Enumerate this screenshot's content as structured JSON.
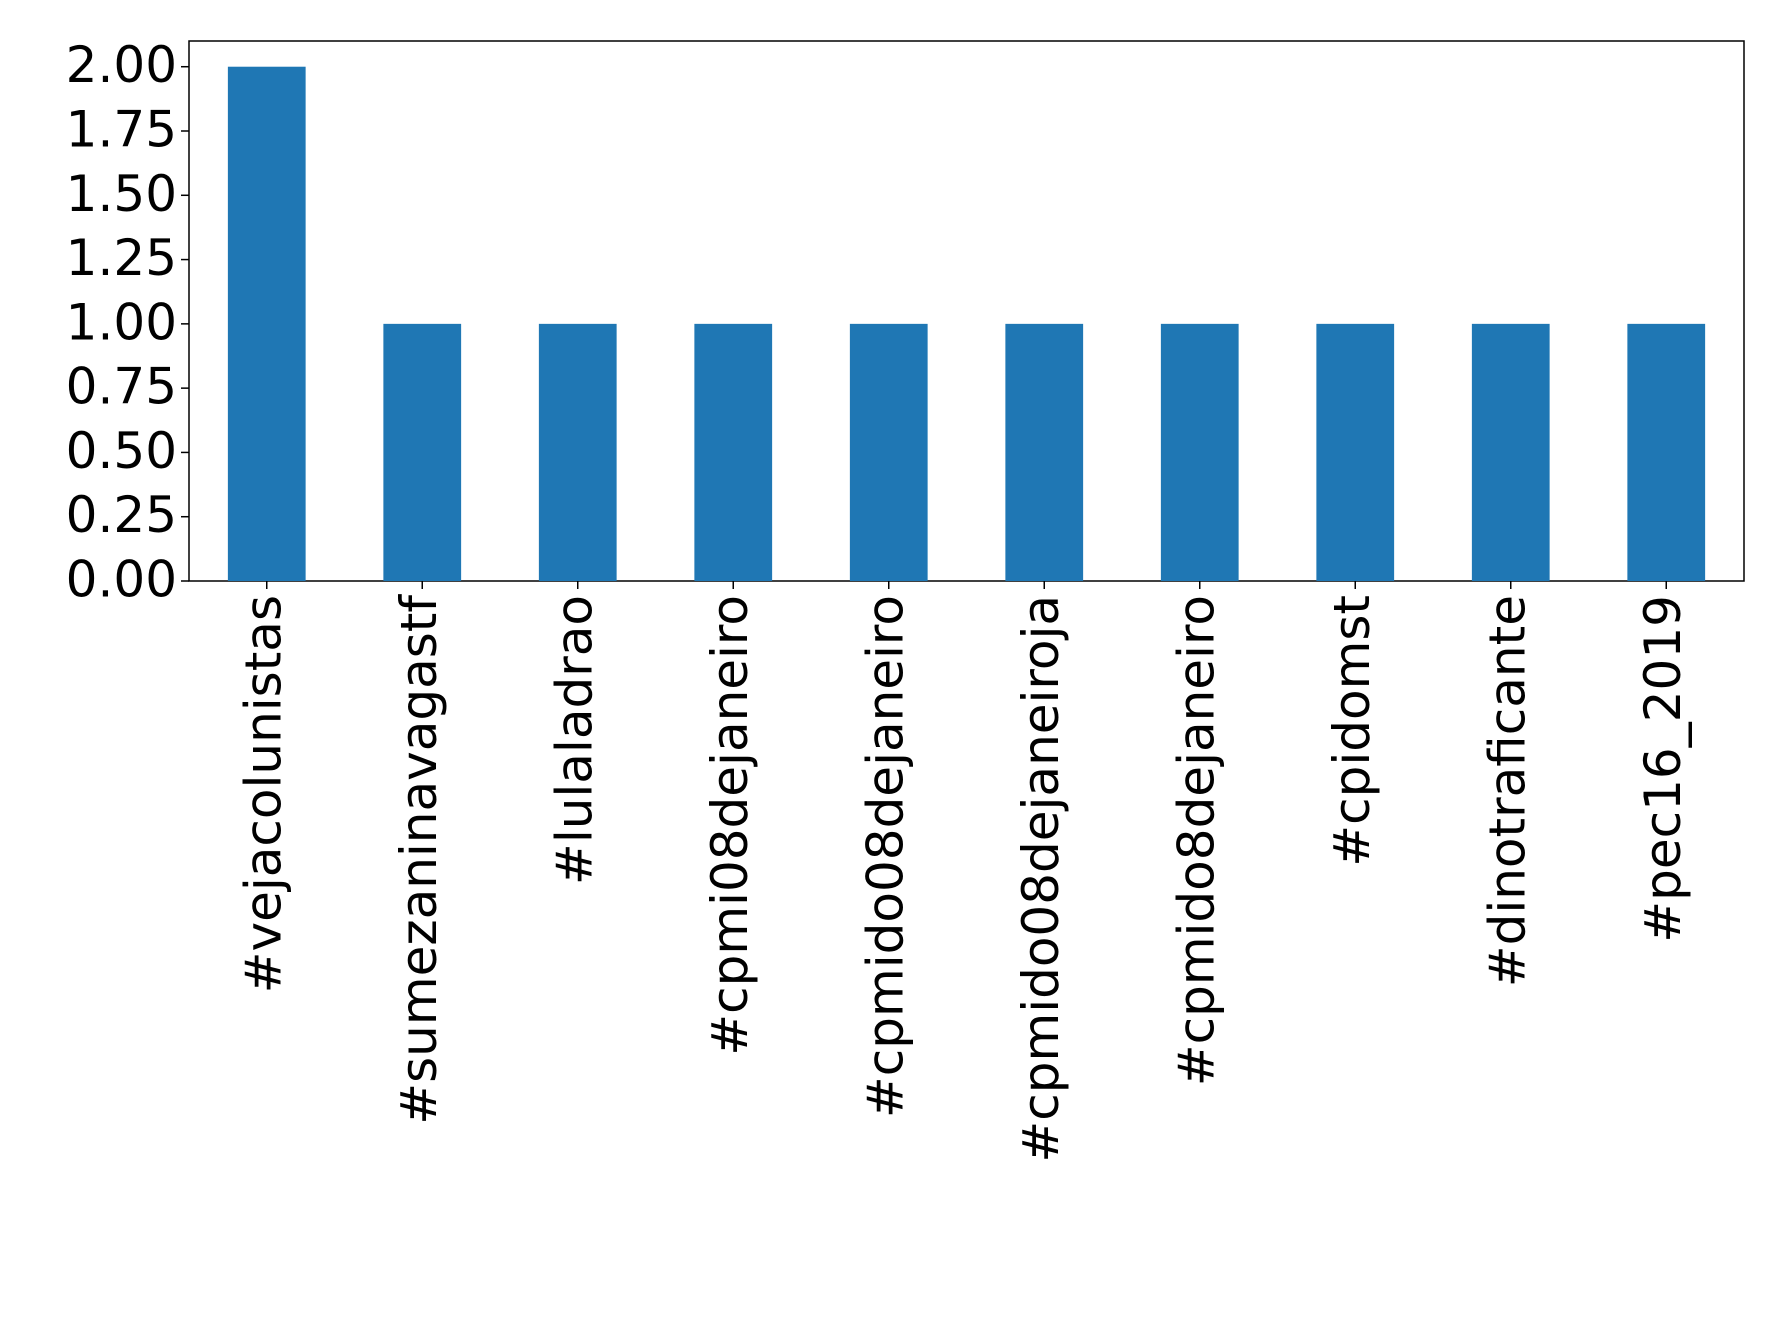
{
  "chart_data": {
    "type": "bar",
    "categories": [
      "#vejacolunistas",
      "#sumezaninavagastf",
      "#lulaladrao",
      "#cpmi08dejaneiro",
      "#cpmido08dejaneiro",
      "#cpmido08dejaneiroja",
      "#cpmido8dejaneiro",
      "#cpidomst",
      "#dinotraficante",
      "#pec16_2019"
    ],
    "values": [
      2,
      1,
      1,
      1,
      1,
      1,
      1,
      1,
      1,
      1
    ],
    "color": "#1f77b4",
    "ylim": [
      0,
      2.1
    ],
    "yticks": [
      {
        "value": 0,
        "label": "0.00"
      },
      {
        "value": 0.25,
        "label": "0.25"
      },
      {
        "value": 0.5,
        "label": "0.50"
      },
      {
        "value": 0.75,
        "label": "0.75"
      },
      {
        "value": 1,
        "label": "1.00"
      },
      {
        "value": 1.25,
        "label": "1.25"
      },
      {
        "value": 1.5,
        "label": "1.50"
      },
      {
        "value": 1.75,
        "label": "1.75"
      },
      {
        "value": 2,
        "label": "2.00"
      }
    ],
    "grid": false
  }
}
